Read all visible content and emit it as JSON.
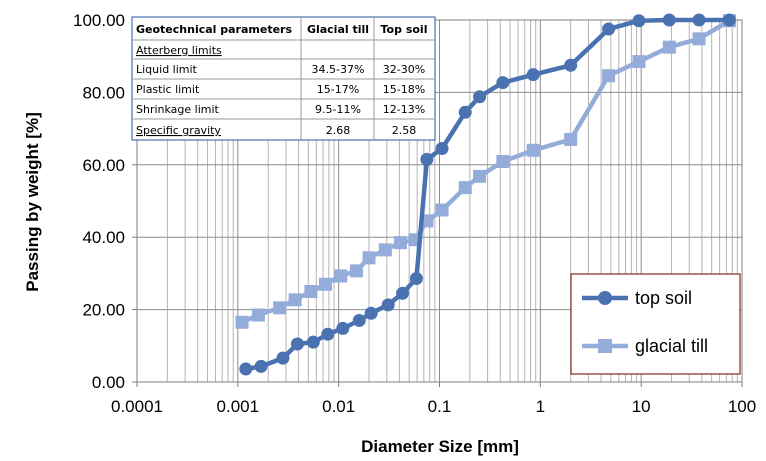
{
  "chart_data": {
    "type": "scatter",
    "xscale": "log",
    "xlim": [
      0.0001,
      100
    ],
    "ylim": [
      0,
      100
    ],
    "grid": true,
    "xlabel": "Diameter Size [mm]",
    "ylabel": "Passing by weight [%]",
    "xticks": [
      "0.0001",
      "0.001",
      "0.01",
      "0.1",
      "1",
      "10",
      "100"
    ],
    "yticks": [
      "0.00",
      "20.00",
      "40.00",
      "60.00",
      "80.00",
      "100.00"
    ],
    "legend_position": "bottom-right",
    "series": [
      {
        "name": "top soil",
        "color": "#4a72b0",
        "marker": "circle",
        "x": [
          0.0012,
          0.0017,
          0.0028,
          0.0039,
          0.0056,
          0.0078,
          0.011,
          0.016,
          0.021,
          0.031,
          0.043,
          0.059,
          0.075,
          0.106,
          0.18,
          0.25,
          0.425,
          0.85,
          2.0,
          4.75,
          9.5,
          19.0,
          37.5,
          75.0
        ],
        "y": [
          3.6,
          4.3,
          6.6,
          10.5,
          11.0,
          13.2,
          14.8,
          17.0,
          19.0,
          21.3,
          24.5,
          28.6,
          61.5,
          64.5,
          74.5,
          78.8,
          82.7,
          84.9,
          87.5,
          97.5,
          99.8,
          100.0,
          100.0,
          100.0
        ]
      },
      {
        "name": "glacial till",
        "color": "#94acd9",
        "marker": "square",
        "x": [
          0.0011,
          0.0016,
          0.0026,
          0.0037,
          0.0053,
          0.0074,
          0.0105,
          0.015,
          0.02,
          0.029,
          0.041,
          0.057,
          0.075,
          0.106,
          0.18,
          0.25,
          0.425,
          0.85,
          2.0,
          4.75,
          9.5,
          19.0,
          37.5,
          75.0
        ],
        "y": [
          16.5,
          18.5,
          20.5,
          22.7,
          25.0,
          27.0,
          29.3,
          30.7,
          34.3,
          36.5,
          38.5,
          39.3,
          44.5,
          47.5,
          53.7,
          56.8,
          60.9,
          64.0,
          67.0,
          84.6,
          88.5,
          92.5,
          94.8,
          99.8
        ]
      }
    ]
  },
  "table": {
    "headers": [
      "Geotechnical parameters",
      "Glacial till",
      "Top soil"
    ],
    "section": "Atterberg limits",
    "rows": [
      [
        "Liquid limit",
        "34.5-37%",
        "32-30%"
      ],
      [
        "Plastic limit",
        "15-17%",
        "15-18%"
      ],
      [
        "Shrinkage limit",
        "9.5-11%",
        "12-13%"
      ],
      [
        "Specific gravity",
        "2.68",
        "2.58"
      ]
    ]
  }
}
